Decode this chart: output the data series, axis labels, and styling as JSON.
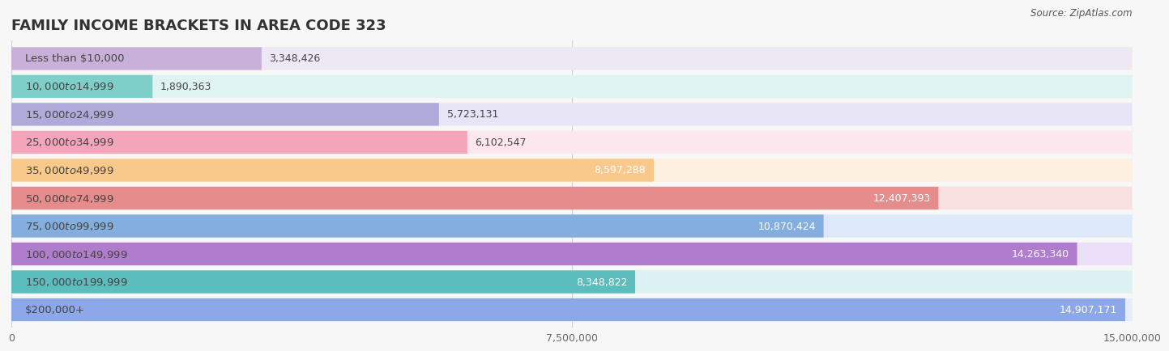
{
  "title": "FAMILY INCOME BRACKETS IN AREA CODE 323",
  "source": "Source: ZipAtlas.com",
  "categories": [
    "Less than $10,000",
    "$10,000 to $14,999",
    "$15,000 to $24,999",
    "$25,000 to $34,999",
    "$35,000 to $49,999",
    "$50,000 to $74,999",
    "$75,000 to $99,999",
    "$100,000 to $149,999",
    "$150,000 to $199,999",
    "$200,000+"
  ],
  "values": [
    3348426,
    1890363,
    5723131,
    6102547,
    8597288,
    12407393,
    10870424,
    14263340,
    8348822,
    14907171
  ],
  "value_labels": [
    "3,348,426",
    "1,890,363",
    "5,723,131",
    "6,102,547",
    "8,597,288",
    "12,407,393",
    "10,870,424",
    "14,263,340",
    "8,348,822",
    "14,907,171"
  ],
  "bar_colors": [
    "#c9b0d8",
    "#7ecfc9",
    "#aeaada",
    "#f4a5ba",
    "#f8c98a",
    "#e68c8c",
    "#84aedd",
    "#b07dcc",
    "#5bbdbd",
    "#8da8e8"
  ],
  "bar_bg_colors": [
    "#ede8f3",
    "#dff3f2",
    "#e7e5f5",
    "#fde7ee",
    "#fdf0e0",
    "#f9e0e0",
    "#dde9f8",
    "#ecdff8",
    "#dcf2f2",
    "#e8ebf8"
  ],
  "xlim": [
    0,
    15000000
  ],
  "xtick_labels": [
    "0",
    "7,500,000",
    "15,000,000"
  ],
  "title_fontsize": 13,
  "label_fontsize": 9.5,
  "value_fontsize": 9,
  "background_color": "#f7f7f7",
  "value_inside_threshold": 0.55
}
